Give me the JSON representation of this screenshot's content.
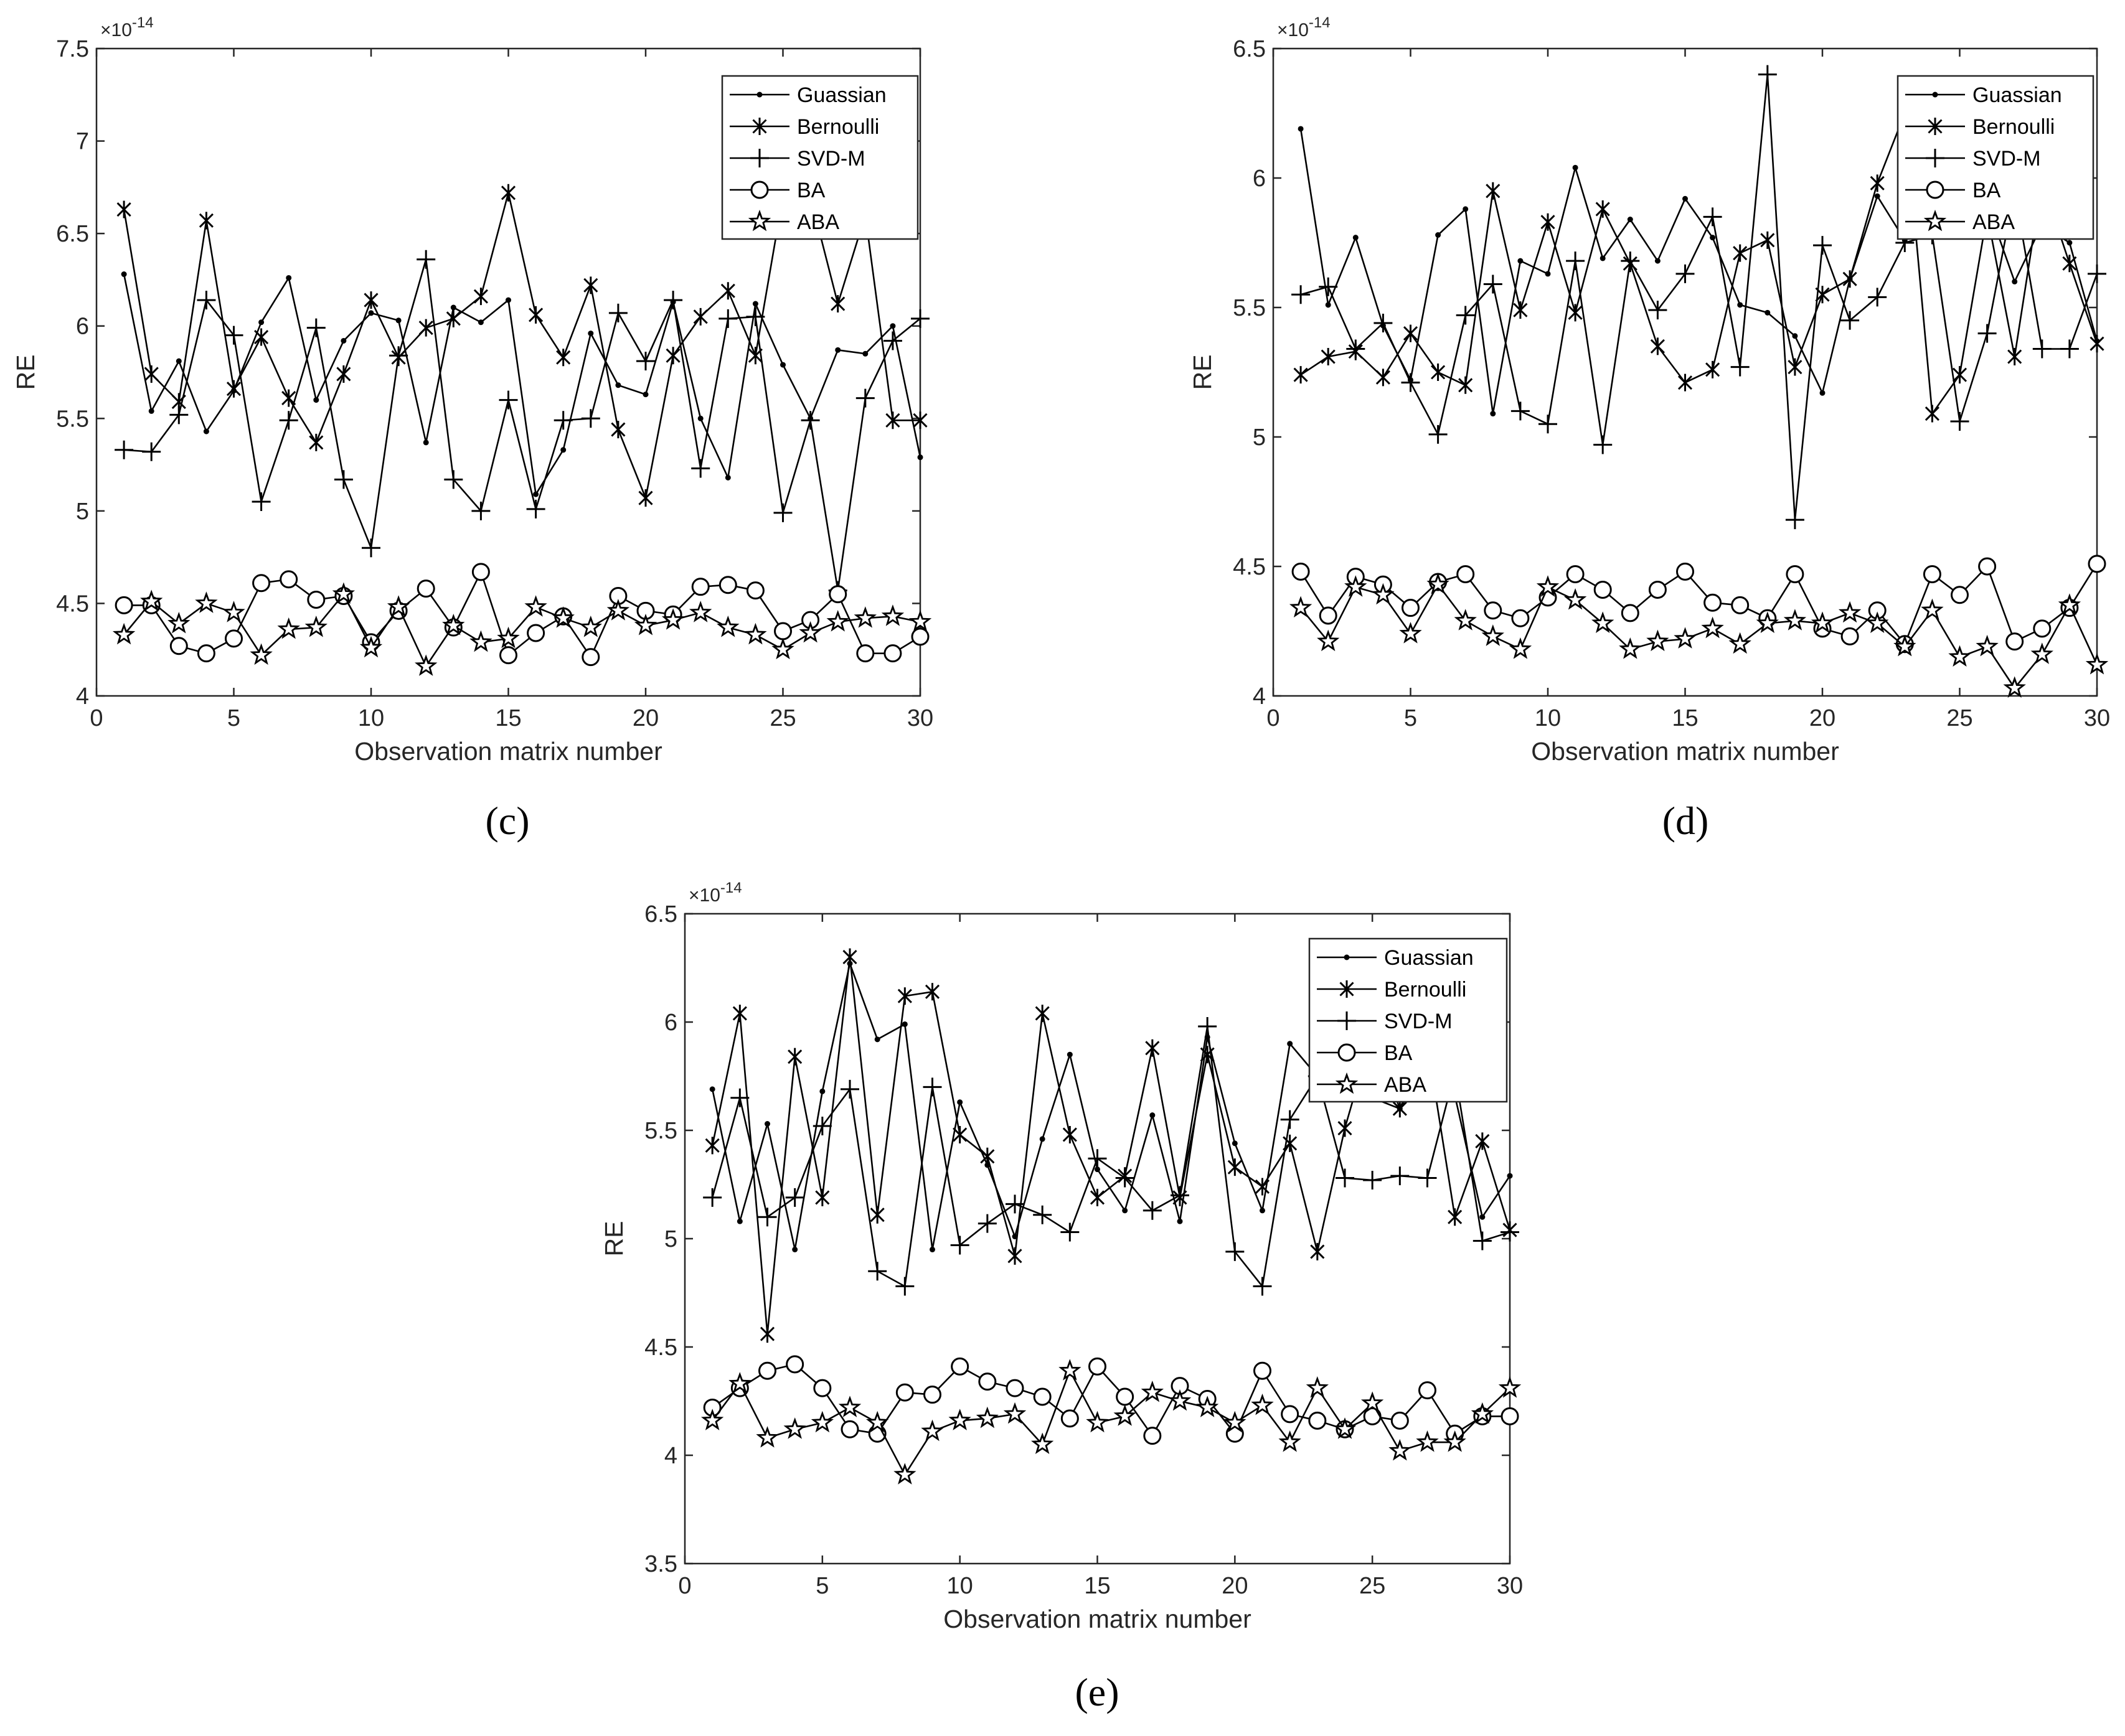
{
  "chart_data": [
    {
      "type": "line",
      "panel_label": "(c)",
      "xlabel": "Observation matrix number",
      "ylabel": "RE",
      "exponent_label": "×10",
      "exponent_power": "-14",
      "xlim": [
        0,
        30
      ],
      "ylim": [
        4,
        7.5
      ],
      "xticks": [
        0,
        5,
        10,
        15,
        20,
        25,
        30
      ],
      "yticks": [
        4,
        4.5,
        5,
        5.5,
        6,
        6.5,
        7,
        7.5
      ],
      "yticklabels": [
        "4",
        "4.5",
        "5",
        "5.5",
        "6",
        "6.5",
        "7",
        "7.5"
      ],
      "legend_position": "top-right",
      "grid": false,
      "x": [
        1,
        2,
        3,
        4,
        5,
        6,
        7,
        8,
        9,
        10,
        11,
        12,
        13,
        14,
        15,
        16,
        17,
        18,
        19,
        20,
        21,
        22,
        23,
        24,
        25,
        26,
        27,
        28,
        29,
        30
      ],
      "series": [
        {
          "name": "Guassian",
          "marker": "dot",
          "values": [
            6.28,
            5.54,
            5.81,
            5.43,
            5.65,
            6.02,
            6.26,
            5.6,
            5.92,
            6.07,
            6.03,
            5.37,
            6.1,
            6.02,
            6.14,
            5.09,
            5.33,
            5.96,
            5.68,
            5.63,
            6.13,
            5.5,
            5.18,
            6.12,
            5.79,
            5.5,
            5.87,
            5.85,
            6.0,
            5.29
          ]
        },
        {
          "name": "Bernoulli",
          "marker": "asterisk",
          "values": [
            6.63,
            5.74,
            5.59,
            6.57,
            5.66,
            5.94,
            5.61,
            5.37,
            5.74,
            6.14,
            5.83,
            5.99,
            6.04,
            6.16,
            6.72,
            6.06,
            5.83,
            6.22,
            5.44,
            5.07,
            5.84,
            6.05,
            6.19,
            5.84,
            6.7,
            6.7,
            6.12,
            6.6,
            5.49,
            5.49
          ]
        },
        {
          "name": "SVD-M",
          "marker": "plus",
          "values": [
            5.33,
            5.32,
            5.52,
            6.14,
            5.95,
            5.05,
            5.49,
            5.99,
            5.17,
            4.8,
            5.84,
            6.36,
            5.17,
            5.0,
            5.6,
            5.01,
            5.49,
            5.5,
            6.07,
            5.81,
            6.14,
            5.23,
            6.04,
            6.05,
            4.99,
            5.49,
            4.57,
            5.61,
            5.92,
            6.04
          ]
        },
        {
          "name": "BA",
          "marker": "circle",
          "values": [
            4.49,
            4.49,
            4.27,
            4.23,
            4.31,
            4.61,
            4.63,
            4.52,
            4.54,
            4.29,
            4.46,
            4.58,
            4.37,
            4.67,
            4.22,
            4.34,
            4.43,
            4.21,
            4.54,
            4.46,
            4.44,
            4.59,
            4.6,
            4.57,
            4.35,
            4.41,
            4.55,
            4.23,
            4.23,
            4.32
          ]
        },
        {
          "name": "ABA",
          "marker": "pentagram",
          "values": [
            4.33,
            4.51,
            4.39,
            4.5,
            4.45,
            4.22,
            4.36,
            4.37,
            4.55,
            4.26,
            4.48,
            4.16,
            4.38,
            4.29,
            4.31,
            4.48,
            4.42,
            4.37,
            4.46,
            4.38,
            4.41,
            4.45,
            4.37,
            4.33,
            4.25,
            4.34,
            4.4,
            4.42,
            4.43,
            4.4
          ]
        }
      ]
    },
    {
      "type": "line",
      "panel_label": "(d)",
      "xlabel": "Observation matrix number",
      "ylabel": "RE",
      "exponent_label": "×10",
      "exponent_power": "-14",
      "xlim": [
        0,
        30
      ],
      "ylim": [
        4,
        6.5
      ],
      "xticks": [
        0,
        5,
        10,
        15,
        20,
        25,
        30
      ],
      "yticks": [
        4,
        4.5,
        5,
        5.5,
        6,
        6.5
      ],
      "yticklabels": [
        "4",
        "4.5",
        "5",
        "5.5",
        "6",
        "6.5"
      ],
      "legend_position": "top-right",
      "grid": false,
      "x": [
        1,
        2,
        3,
        4,
        5,
        6,
        7,
        8,
        9,
        10,
        11,
        12,
        13,
        14,
        15,
        16,
        17,
        18,
        19,
        20,
        21,
        22,
        23,
        24,
        25,
        26,
        27,
        28,
        29,
        30
      ],
      "series": [
        {
          "name": "Guassian",
          "marker": "dot",
          "values": [
            6.19,
            5.51,
            5.77,
            5.43,
            5.22,
            5.78,
            5.88,
            5.09,
            5.68,
            5.63,
            6.04,
            5.69,
            5.84,
            5.68,
            5.92,
            5.77,
            5.51,
            5.48,
            5.39,
            5.17,
            5.61,
            5.93,
            5.76,
            5.9,
            5.86,
            5.9,
            5.6,
            5.82,
            5.75,
            5.37
          ]
        },
        {
          "name": "Bernoulli",
          "marker": "asterisk",
          "values": [
            5.24,
            5.31,
            5.33,
            5.23,
            5.4,
            5.25,
            5.2,
            5.95,
            5.49,
            5.83,
            5.48,
            5.88,
            5.67,
            5.35,
            5.21,
            5.26,
            5.71,
            5.76,
            5.27,
            5.55,
            5.61,
            5.98,
            6.25,
            5.09,
            5.24,
            5.86,
            5.31,
            5.99,
            5.67,
            5.36
          ]
        },
        {
          "name": "SVD-M",
          "marker": "plus",
          "values": [
            5.55,
            5.58,
            5.34,
            5.44,
            5.21,
            5.01,
            5.47,
            5.59,
            5.1,
            5.05,
            5.68,
            4.97,
            5.68,
            5.49,
            5.63,
            5.85,
            5.27,
            6.4,
            4.68,
            5.74,
            5.45,
            5.54,
            5.75,
            5.78,
            5.06,
            5.4,
            5.95,
            5.34,
            5.34,
            5.63
          ]
        },
        {
          "name": "BA",
          "marker": "circle",
          "values": [
            4.48,
            4.31,
            4.46,
            4.43,
            4.34,
            4.44,
            4.47,
            4.33,
            4.3,
            4.38,
            4.47,
            4.41,
            4.32,
            4.41,
            4.48,
            4.36,
            4.35,
            4.3,
            4.47,
            4.26,
            4.23,
            4.33,
            4.2,
            4.47,
            4.39,
            4.5,
            4.21,
            4.26,
            4.34,
            4.51
          ]
        },
        {
          "name": "ABA",
          "marker": "pentagram",
          "values": [
            4.34,
            4.21,
            4.42,
            4.39,
            4.24,
            4.43,
            4.29,
            4.23,
            4.18,
            4.42,
            4.37,
            4.28,
            4.18,
            4.21,
            4.22,
            4.26,
            4.2,
            4.28,
            4.29,
            4.28,
            4.32,
            4.28,
            4.19,
            4.33,
            4.15,
            4.19,
            4.03,
            4.16,
            4.35,
            4.12
          ]
        }
      ]
    },
    {
      "type": "line",
      "panel_label": "(e)",
      "xlabel": "Observation matrix number",
      "ylabel": "RE",
      "exponent_label": "×10",
      "exponent_power": "-14",
      "xlim": [
        0,
        30
      ],
      "ylim": [
        3.5,
        6.5
      ],
      "xticks": [
        0,
        5,
        10,
        15,
        20,
        25,
        30
      ],
      "yticks": [
        3.5,
        4,
        4.5,
        5,
        5.5,
        6,
        6.5
      ],
      "yticklabels": [
        "3.5",
        "4",
        "4.5",
        "5",
        "5.5",
        "6",
        "6.5"
      ],
      "legend_position": "top-right",
      "grid": false,
      "x": [
        1,
        2,
        3,
        4,
        5,
        6,
        7,
        8,
        9,
        10,
        11,
        12,
        13,
        14,
        15,
        16,
        17,
        18,
        19,
        20,
        21,
        22,
        23,
        24,
        25,
        26,
        27,
        28,
        29,
        30
      ],
      "series": [
        {
          "name": "Guassian",
          "marker": "dot",
          "values": [
            5.69,
            5.08,
            5.53,
            4.95,
            5.68,
            6.27,
            5.92,
            5.99,
            4.95,
            5.63,
            5.34,
            5.01,
            5.46,
            5.85,
            5.32,
            5.13,
            5.57,
            5.08,
            5.93,
            5.44,
            5.13,
            5.9,
            5.75,
            5.65,
            5.65,
            5.6,
            5.81,
            5.66,
            5.1,
            5.29
          ]
        },
        {
          "name": "Bernoulli",
          "marker": "asterisk",
          "values": [
            5.43,
            6.04,
            4.56,
            5.84,
            5.19,
            6.3,
            5.11,
            6.12,
            6.14,
            5.48,
            5.38,
            4.92,
            6.04,
            5.48,
            5.19,
            5.29,
            5.88,
            5.19,
            5.85,
            5.33,
            5.24,
            5.44,
            4.94,
            5.51,
            5.95,
            5.6,
            5.9,
            5.1,
            5.45,
            5.04
          ]
        },
        {
          "name": "SVD-M",
          "marker": "plus",
          "values": [
            5.19,
            5.65,
            5.1,
            5.19,
            5.52,
            5.69,
            4.85,
            4.78,
            5.7,
            4.97,
            5.07,
            5.16,
            5.11,
            5.03,
            5.37,
            5.28,
            5.13,
            5.2,
            5.98,
            4.94,
            4.78,
            5.55,
            5.75,
            5.28,
            5.27,
            5.29,
            5.28,
            5.77,
            4.99,
            5.03
          ]
        },
        {
          "name": "BA",
          "marker": "circle",
          "values": [
            4.22,
            4.31,
            4.39,
            4.42,
            4.31,
            4.12,
            4.1,
            4.29,
            4.28,
            4.41,
            4.34,
            4.31,
            4.27,
            4.17,
            4.41,
            4.27,
            4.09,
            4.32,
            4.26,
            4.1,
            4.39,
            4.19,
            4.16,
            4.12,
            4.18,
            4.16,
            4.3,
            4.1,
            4.18,
            4.18
          ]
        },
        {
          "name": "ABA",
          "marker": "pentagram",
          "values": [
            4.16,
            4.33,
            4.08,
            4.12,
            4.15,
            4.22,
            4.15,
            3.91,
            4.11,
            4.16,
            4.17,
            4.19,
            4.05,
            4.39,
            4.15,
            4.18,
            4.29,
            4.25,
            4.22,
            4.15,
            4.23,
            4.06,
            4.31,
            4.12,
            4.24,
            4.02,
            4.06,
            4.06,
            4.19,
            4.31
          ]
        }
      ]
    }
  ]
}
